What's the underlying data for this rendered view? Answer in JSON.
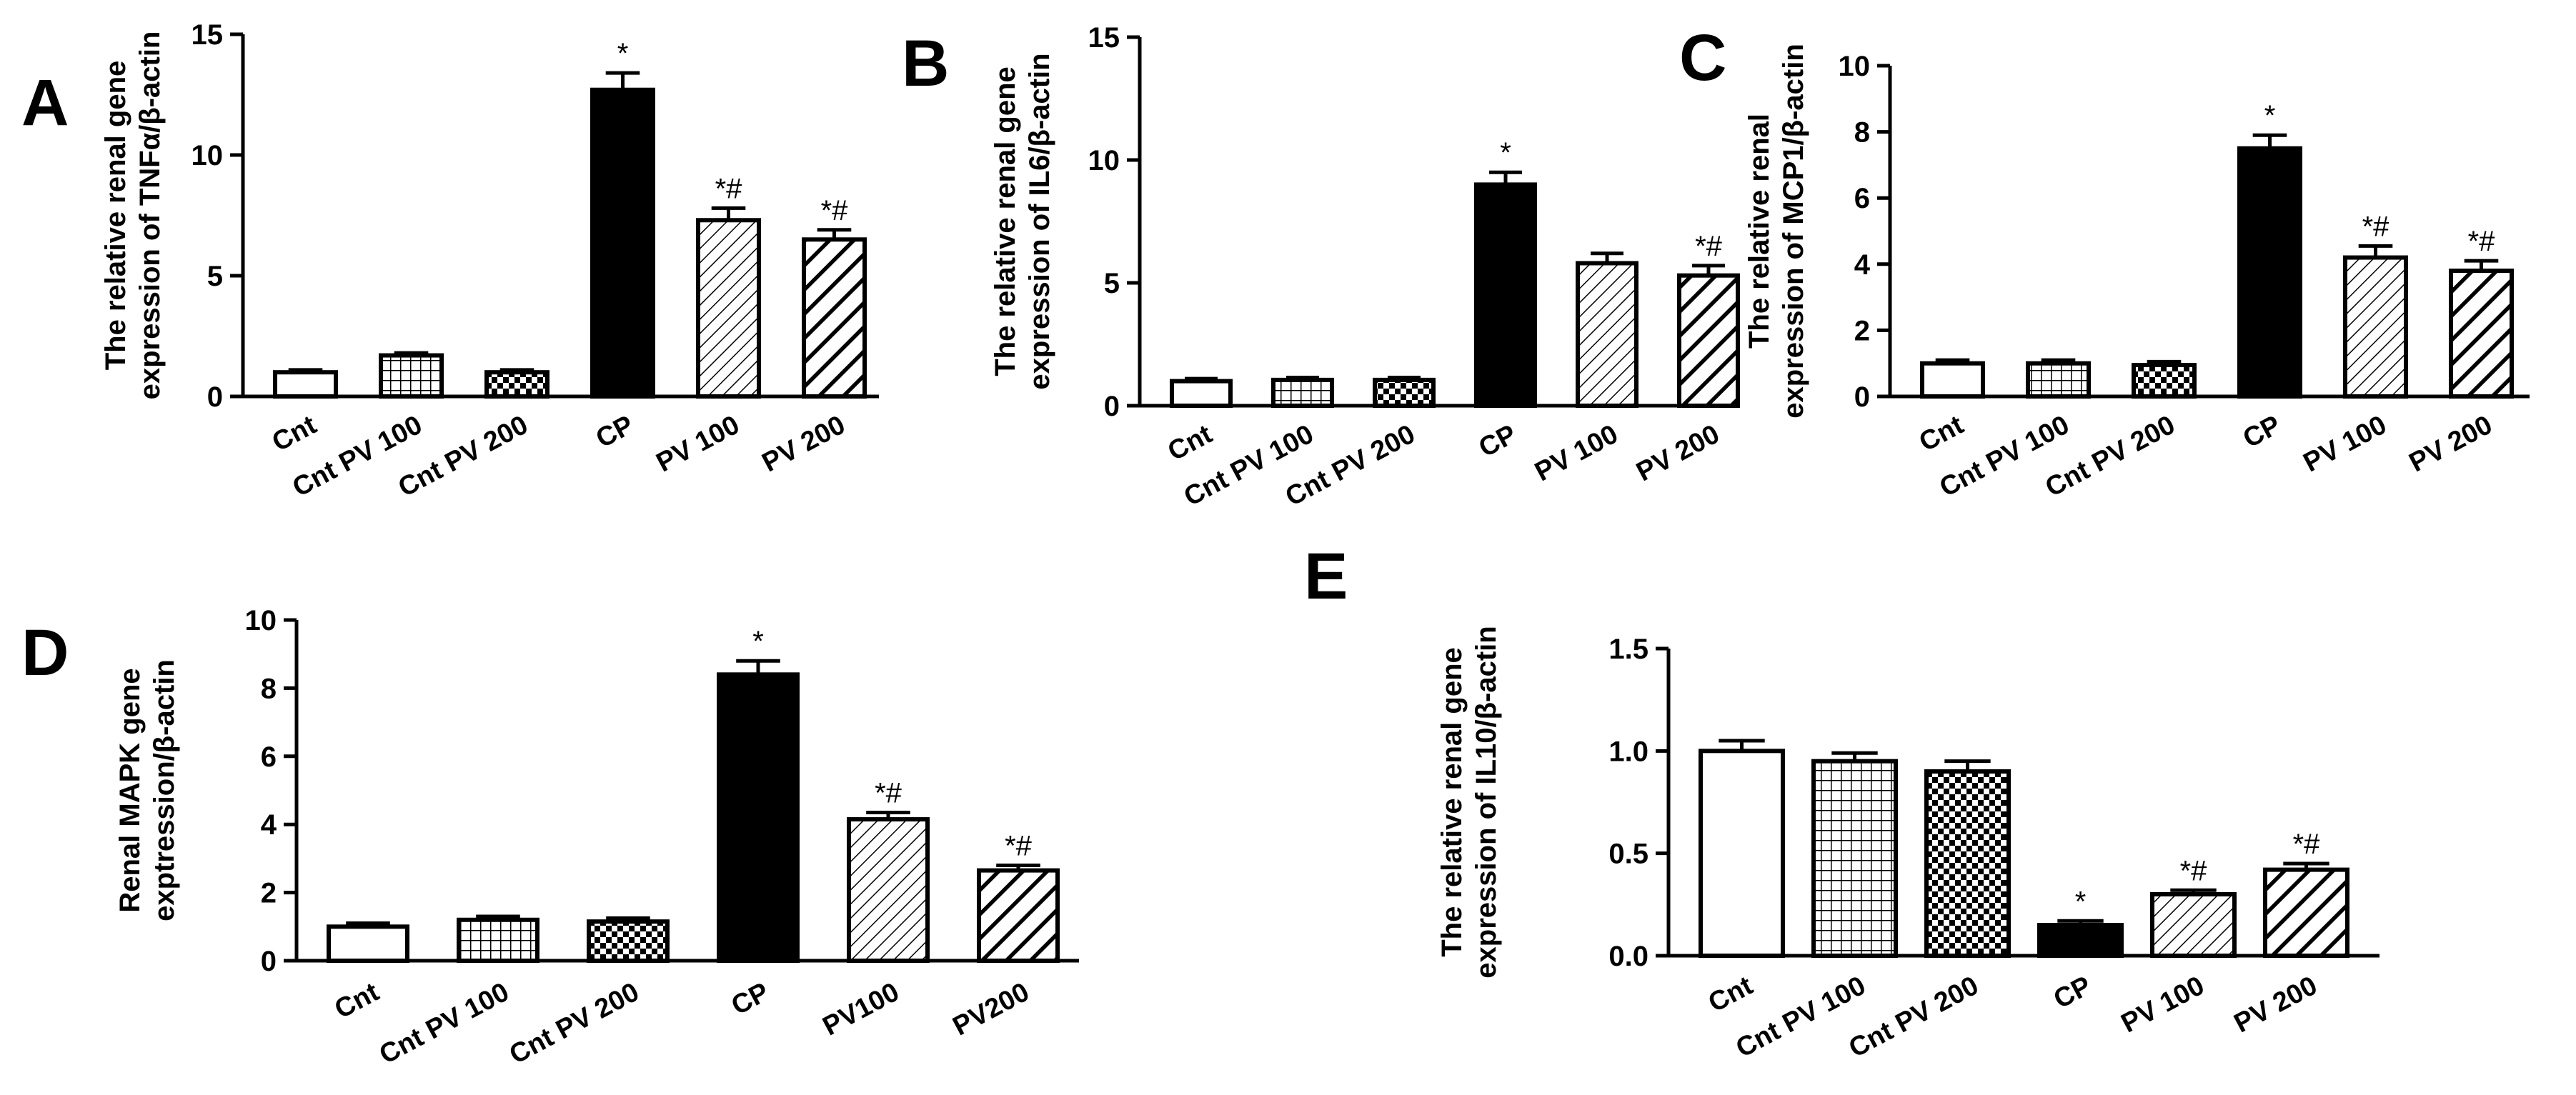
{
  "chart_data": [
    {
      "panel": "A",
      "type": "bar",
      "ylabel": [
        "The relative renal gene",
        "expression of TNFα/β-actin"
      ],
      "ylim": [
        0,
        15
      ],
      "yticks": [
        "0",
        "5",
        "10",
        "15"
      ],
      "categories": [
        "Cnt",
        "Cnt PV 100",
        "Cnt PV 200",
        "CP",
        "PV 100",
        "PV 200"
      ],
      "values": [
        1.0,
        1.7,
        1.0,
        12.7,
        7.3,
        6.5
      ],
      "errors": [
        0.1,
        0.1,
        0.1,
        0.7,
        0.5,
        0.4
      ],
      "annotations": [
        "",
        "",
        "",
        "*",
        "*#",
        "*#"
      ],
      "patterns": [
        "white",
        "grid",
        "checker",
        "black",
        "diag-thin",
        "diag-thick"
      ]
    },
    {
      "panel": "B",
      "type": "bar",
      "ylabel": [
        "The relative renal gene",
        "expression of IL6/β-actin"
      ],
      "ylim": [
        0,
        15
      ],
      "yticks": [
        "0",
        "5",
        "10",
        "15"
      ],
      "categories": [
        "Cnt",
        "Cnt PV 100",
        "Cnt PV 200",
        "CP",
        "PV 100",
        "PV 200"
      ],
      "values": [
        1.0,
        1.05,
        1.05,
        9.0,
        5.8,
        5.3
      ],
      "errors": [
        0.1,
        0.1,
        0.1,
        0.5,
        0.4,
        0.4
      ],
      "annotations": [
        "",
        "",
        "",
        "*",
        "",
        "*#"
      ],
      "patterns": [
        "white",
        "grid",
        "checker",
        "black",
        "diag-thin",
        "diag-thick"
      ]
    },
    {
      "panel": "C",
      "type": "bar",
      "ylabel": [
        "The relative renal",
        "expression of MCP1/β-actin"
      ],
      "ylim": [
        0,
        10
      ],
      "yticks": [
        "0",
        "2",
        "4",
        "6",
        "8",
        "10"
      ],
      "categories": [
        "Cnt",
        "Cnt PV 100",
        "Cnt PV 200",
        "CP",
        "PV 100",
        "PV 200"
      ],
      "values": [
        1.0,
        1.0,
        0.95,
        7.5,
        4.2,
        3.8
      ],
      "errors": [
        0.1,
        0.1,
        0.1,
        0.4,
        0.35,
        0.3
      ],
      "annotations": [
        "",
        "",
        "",
        "*",
        "*#",
        "*#"
      ],
      "patterns": [
        "white",
        "grid",
        "checker",
        "black",
        "diag-thin",
        "diag-thick"
      ]
    },
    {
      "panel": "D",
      "type": "bar",
      "ylabel": [
        "Renal MAPK gene",
        "exptression/β-actin"
      ],
      "ylim": [
        0,
        10
      ],
      "yticks": [
        "0",
        "2",
        "4",
        "6",
        "8",
        "10"
      ],
      "categories": [
        "Cnt",
        "Cnt PV 100",
        "Cnt PV 200",
        "CP",
        "PV100",
        "PV200"
      ],
      "values": [
        1.0,
        1.2,
        1.15,
        8.4,
        4.15,
        2.65
      ],
      "errors": [
        0.1,
        0.1,
        0.1,
        0.4,
        0.2,
        0.15
      ],
      "annotations": [
        "",
        "",
        "",
        "*",
        "*#",
        "*#"
      ],
      "patterns": [
        "white",
        "grid",
        "checker",
        "black",
        "diag-thin",
        "diag-thick"
      ]
    },
    {
      "panel": "E",
      "type": "bar",
      "ylabel": [
        "The relative renal gene",
        "expression of IL10/β-actin"
      ],
      "ylim": [
        0,
        1.5
      ],
      "yticks": [
        "0.0",
        "0.5",
        "1.0",
        "1.5"
      ],
      "categories": [
        "Cnt",
        "Cnt PV 100",
        "Cnt PV 200",
        "CP",
        "PV 100",
        "PV 200"
      ],
      "values": [
        1.0,
        0.95,
        0.9,
        0.15,
        0.3,
        0.42
      ],
      "errors": [
        0.05,
        0.04,
        0.05,
        0.02,
        0.02,
        0.03
      ],
      "annotations": [
        "",
        "",
        "",
        "*",
        "*#",
        "*#"
      ],
      "patterns": [
        "white",
        "grid",
        "checker",
        "black",
        "diag-thin",
        "diag-thick"
      ]
    }
  ]
}
